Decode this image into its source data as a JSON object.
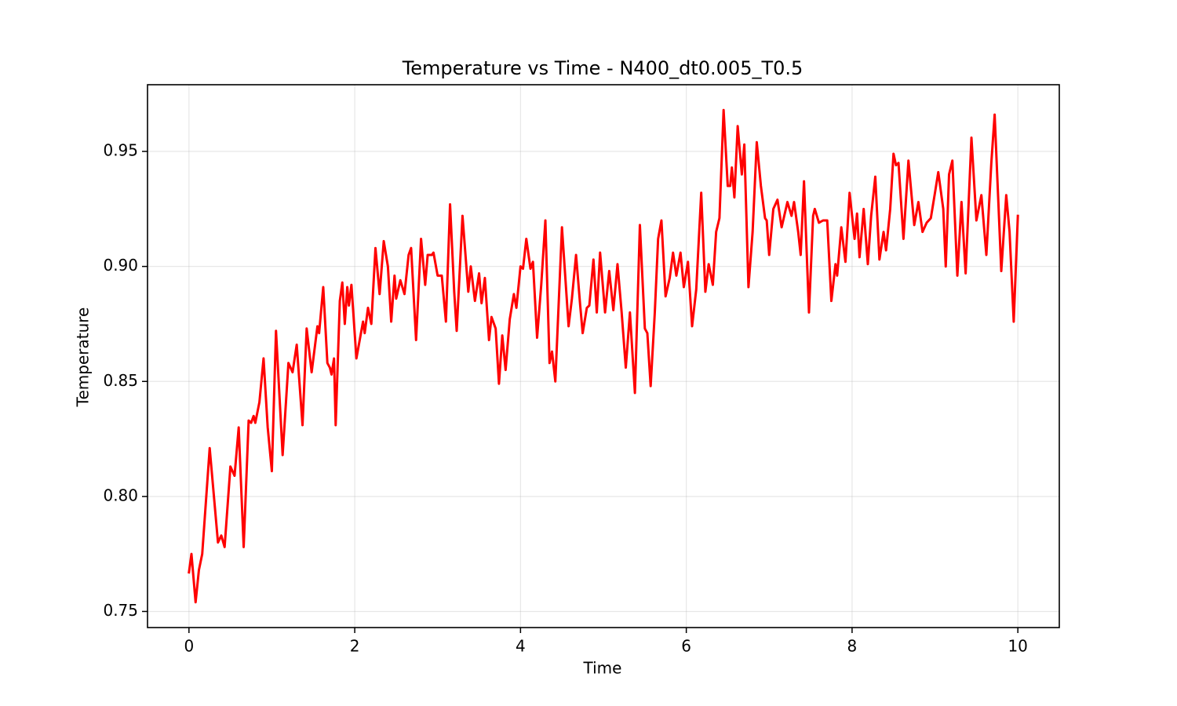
{
  "chart_data": {
    "type": "line",
    "title": "Temperature vs Time - N400_dt0.005_T0.5",
    "x_label": "Time",
    "y_label": "Temperature",
    "color": "#ff0000",
    "grid": true,
    "xlim": [
      -0.5,
      10.5
    ],
    "ylim": [
      0.743,
      0.979
    ],
    "xticks": [
      0,
      2,
      4,
      6,
      8,
      10
    ],
    "yticks": [
      0.75,
      {
        "value": 0.8,
        "label": "0.80"
      },
      0.85,
      {
        "value": 0.9,
        "label": "0.90"
      },
      0.95
    ],
    "x": [
      0.0,
      0.03,
      0.08,
      0.12,
      0.16,
      0.25,
      0.35,
      0.39,
      0.43,
      0.5,
      0.55,
      0.6,
      0.66,
      0.72,
      0.75,
      0.78,
      0.8,
      0.85,
      0.9,
      0.95,
      1.0,
      1.05,
      1.13,
      1.2,
      1.25,
      1.3,
      1.37,
      1.42,
      1.48,
      1.55,
      1.57,
      1.62,
      1.67,
      1.7,
      1.72,
      1.75,
      1.77,
      1.82,
      1.85,
      1.88,
      1.91,
      1.93,
      1.96,
      2.02,
      2.1,
      2.12,
      2.16,
      2.2,
      2.25,
      2.3,
      2.35,
      2.4,
      2.44,
      2.48,
      2.5,
      2.55,
      2.6,
      2.65,
      2.68,
      2.74,
      2.8,
      2.85,
      2.88,
      2.93,
      2.95,
      3.0,
      3.05,
      3.1,
      3.15,
      3.2,
      3.23,
      3.3,
      3.37,
      3.4,
      3.45,
      3.5,
      3.53,
      3.57,
      3.62,
      3.65,
      3.7,
      3.74,
      3.78,
      3.82,
      3.87,
      3.92,
      3.95,
      4.0,
      4.03,
      4.07,
      4.12,
      4.15,
      4.2,
      4.25,
      4.3,
      4.35,
      4.38,
      4.42,
      4.5,
      4.58,
      4.62,
      4.67,
      4.72,
      4.75,
      4.8,
      4.83,
      4.88,
      4.92,
      4.96,
      5.02,
      5.07,
      5.12,
      5.17,
      5.22,
      5.27,
      5.32,
      5.38,
      5.44,
      5.5,
      5.53,
      5.57,
      5.62,
      5.66,
      5.7,
      5.75,
      5.8,
      5.84,
      5.88,
      5.93,
      5.97,
      6.02,
      6.07,
      6.12,
      6.18,
      6.23,
      6.27,
      6.32,
      6.36,
      6.4,
      6.45,
      6.5,
      6.53,
      6.55,
      6.58,
      6.62,
      6.67,
      6.7,
      6.75,
      6.8,
      6.85,
      6.9,
      6.95,
      6.97,
      7.0,
      7.05,
      7.1,
      7.15,
      7.22,
      7.27,
      7.3,
      7.35,
      7.38,
      7.42,
      7.48,
      7.53,
      7.55,
      7.6,
      7.65,
      7.7,
      7.75,
      7.8,
      7.82,
      7.87,
      7.92,
      7.97,
      8.03,
      8.06,
      8.09,
      8.14,
      8.19,
      8.23,
      8.28,
      8.33,
      8.38,
      8.41,
      8.46,
      8.5,
      8.53,
      8.56,
      8.62,
      8.68,
      8.75,
      8.8,
      8.85,
      8.9,
      8.95,
      9.0,
      9.04,
      9.1,
      9.13,
      9.17,
      9.21,
      9.27,
      9.32,
      9.37,
      9.44,
      9.5,
      9.56,
      9.62,
      9.68,
      9.72,
      9.8,
      9.86,
      9.9,
      9.95,
      10.0
    ],
    "values": [
      0.767,
      0.775,
      0.754,
      0.768,
      0.775,
      0.821,
      0.78,
      0.783,
      0.778,
      0.813,
      0.809,
      0.83,
      0.778,
      0.833,
      0.832,
      0.835,
      0.832,
      0.841,
      0.86,
      0.83,
      0.811,
      0.872,
      0.818,
      0.858,
      0.854,
      0.866,
      0.831,
      0.873,
      0.854,
      0.874,
      0.871,
      0.891,
      0.858,
      0.856,
      0.853,
      0.86,
      0.831,
      0.885,
      0.893,
      0.875,
      0.891,
      0.883,
      0.892,
      0.86,
      0.876,
      0.871,
      0.882,
      0.875,
      0.908,
      0.888,
      0.911,
      0.9,
      0.876,
      0.896,
      0.886,
      0.894,
      0.888,
      0.905,
      0.908,
      0.868,
      0.912,
      0.892,
      0.905,
      0.905,
      0.906,
      0.896,
      0.896,
      0.876,
      0.927,
      0.889,
      0.872,
      0.922,
      0.889,
      0.9,
      0.885,
      0.897,
      0.884,
      0.895,
      0.868,
      0.878,
      0.873,
      0.849,
      0.87,
      0.855,
      0.877,
      0.888,
      0.882,
      0.9,
      0.899,
      0.912,
      0.899,
      0.902,
      0.869,
      0.892,
      0.92,
      0.858,
      0.863,
      0.85,
      0.917,
      0.874,
      0.886,
      0.905,
      0.883,
      0.871,
      0.882,
      0.883,
      0.903,
      0.88,
      0.906,
      0.88,
      0.898,
      0.881,
      0.901,
      0.88,
      0.856,
      0.88,
      0.845,
      0.918,
      0.873,
      0.871,
      0.848,
      0.88,
      0.912,
      0.92,
      0.887,
      0.895,
      0.906,
      0.896,
      0.906,
      0.891,
      0.902,
      0.874,
      0.89,
      0.932,
      0.889,
      0.901,
      0.892,
      0.915,
      0.921,
      0.968,
      0.935,
      0.935,
      0.943,
      0.93,
      0.961,
      0.94,
      0.953,
      0.891,
      0.915,
      0.954,
      0.935,
      0.921,
      0.92,
      0.905,
      0.925,
      0.929,
      0.917,
      0.928,
      0.922,
      0.928,
      0.915,
      0.905,
      0.937,
      0.88,
      0.922,
      0.925,
      0.919,
      0.92,
      0.92,
      0.885,
      0.901,
      0.896,
      0.917,
      0.902,
      0.932,
      0.912,
      0.923,
      0.904,
      0.925,
      0.901,
      0.922,
      0.939,
      0.903,
      0.915,
      0.907,
      0.925,
      0.949,
      0.944,
      0.945,
      0.912,
      0.946,
      0.918,
      0.928,
      0.915,
      0.919,
      0.921,
      0.932,
      0.941,
      0.925,
      0.9,
      0.94,
      0.946,
      0.896,
      0.928,
      0.897,
      0.956,
      0.92,
      0.931,
      0.905,
      0.945,
      0.966,
      0.898,
      0.931,
      0.915,
      0.876,
      0.922
    ]
  }
}
